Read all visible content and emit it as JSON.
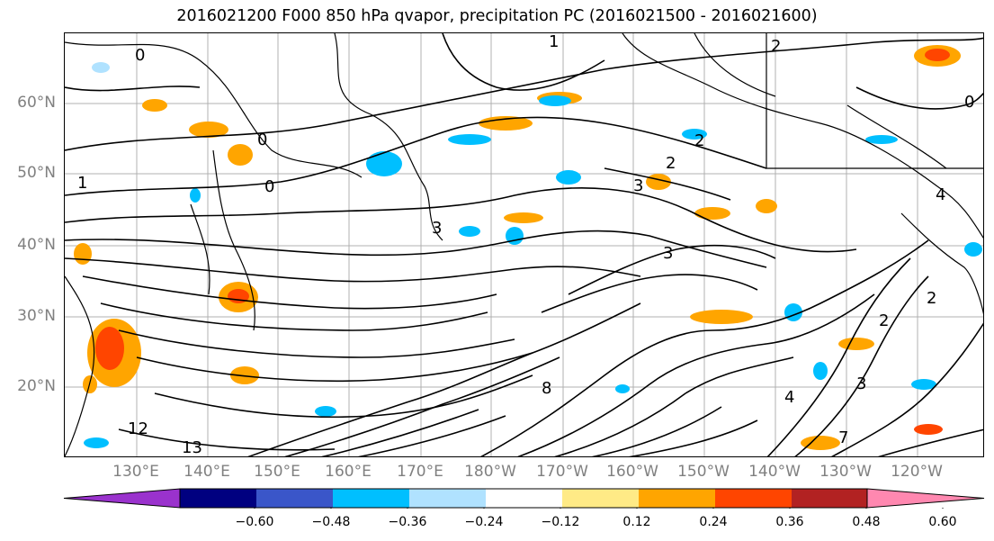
{
  "title": "2016021200 F000 850 hPa qvapor, precipitation PC (2016021500 - 2016021600)",
  "lat_labels": [
    "60°N",
    "50°N",
    "40°N",
    "30°N",
    "20°N"
  ],
  "lon_labels": [
    "130°E",
    "140°E",
    "150°E",
    "160°E",
    "170°E",
    "180°W",
    "170°W",
    "160°W",
    "150°W",
    "140°W",
    "130°W",
    "120°W"
  ],
  "colorbar": {
    "colors": [
      "#9a32cd",
      "#000080",
      "#3a56c9",
      "#00bfff",
      "#b0e2ff",
      "#ffffff",
      "#ffea86",
      "#ffa500",
      "#ff4500",
      "#b22222",
      "#ff88b0"
    ],
    "tick_labels": [
      "−0.60",
      "−0.48",
      "−0.36",
      "−0.24",
      "−0.12",
      "0.12",
      "0.24",
      "0.36",
      "0.48",
      "0.60"
    ]
  },
  "contour_labels": [
    "0",
    "0",
    "0",
    "0",
    "1",
    "1",
    "2",
    "2",
    "2",
    "2",
    "2",
    "3",
    "3",
    "3",
    "3",
    "4",
    "4",
    "7",
    "8",
    "12",
    "13"
  ],
  "map_colors": {
    "land": "#000000",
    "grid": "#b0b0b0",
    "contour": "#000000"
  }
}
